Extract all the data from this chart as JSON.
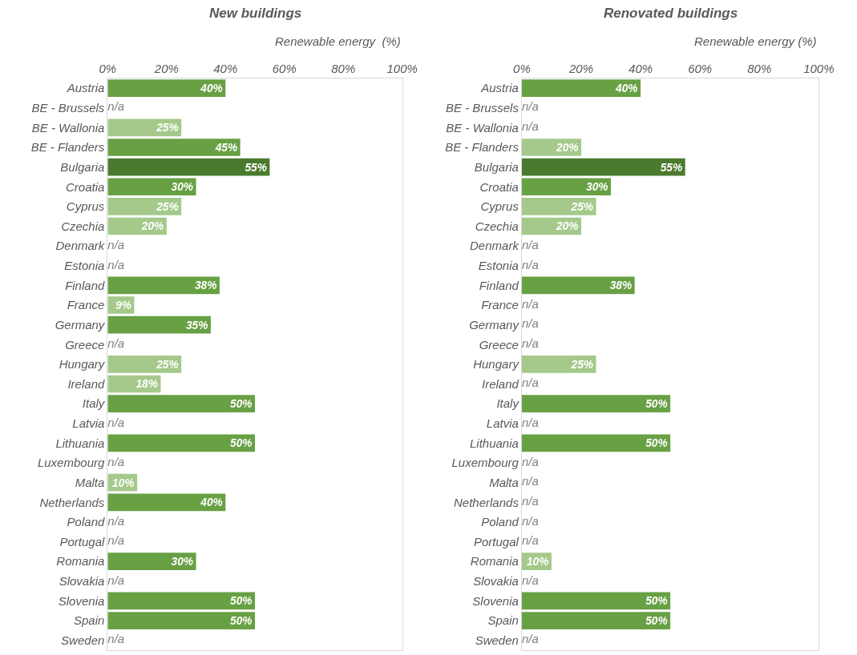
{
  "chart_data": [
    {
      "type": "bar",
      "orientation": "horizontal",
      "title": "New buildings",
      "xlabel": "Renewable energy  (%)",
      "categories": [
        "Austria",
        "BE - Brussels",
        "BE - Wallonia",
        "BE - Flanders",
        "Bulgaria",
        "Croatia",
        "Cyprus",
        "Czechia",
        "Denmark",
        "Estonia",
        "Finland",
        "France",
        "Germany",
        "Greece",
        "Hungary",
        "Ireland",
        "Italy",
        "Latvia",
        "Lithuania",
        "Luxembourg",
        "Malta",
        "Netherlands",
        "Poland",
        "Portugal",
        "Romania",
        "Slovakia",
        "Slovenia",
        "Spain",
        "Sweden"
      ],
      "values": [
        40,
        null,
        25,
        45,
        55,
        30,
        25,
        20,
        null,
        null,
        38,
        9,
        35,
        null,
        25,
        18,
        50,
        null,
        50,
        null,
        10,
        40,
        null,
        null,
        30,
        null,
        50,
        50,
        null
      ],
      "value_labels": [
        "40%",
        "n/a",
        "25%",
        "45%",
        "55%",
        "30%",
        "25%",
        "20%",
        "n/a",
        "n/a",
        "38%",
        "9%",
        "35%",
        "n/a",
        "25%",
        "18%",
        "50%",
        "n/a",
        "50%",
        "n/a",
        "10%",
        "40%",
        "n/a",
        "n/a",
        "30%",
        "n/a",
        "50%",
        "50%",
        "n/a"
      ],
      "colors": [
        "#68a044",
        null,
        "#a4c98a",
        "#68a044",
        "#4a7a2e",
        "#68a044",
        "#a4c98a",
        "#a4c98a",
        null,
        null,
        "#68a044",
        "#a4c98a",
        "#68a044",
        null,
        "#a4c98a",
        "#a4c98a",
        "#68a044",
        null,
        "#68a044",
        null,
        "#a4c98a",
        "#68a044",
        null,
        null,
        "#68a044",
        null,
        "#68a044",
        "#68a044",
        null
      ],
      "xlim": [
        0,
        100
      ],
      "xticks": [
        {
          "value": 0,
          "label": "0%"
        },
        {
          "value": 20,
          "label": "20%"
        },
        {
          "value": 40,
          "label": "40%"
        },
        {
          "value": 60,
          "label": "60%"
        },
        {
          "value": 80,
          "label": "80%"
        },
        {
          "value": 100,
          "label": "100%"
        }
      ]
    },
    {
      "type": "bar",
      "orientation": "horizontal",
      "title": "Renovated buildings",
      "xlabel": "Renewable energy (%)",
      "categories": [
        "Austria",
        "BE - Brussels",
        "BE - Wallonia",
        "BE - Flanders",
        "Bulgaria",
        "Croatia",
        "Cyprus",
        "Czechia",
        "Denmark",
        "Estonia",
        "Finland",
        "France",
        "Germany",
        "Greece",
        "Hungary",
        "Ireland",
        "Italy",
        "Latvia",
        "Lithuania",
        "Luxembourg",
        "Malta",
        "Netherlands",
        "Poland",
        "Portugal",
        "Romania",
        "Slovakia",
        "Slovenia",
        "Spain",
        "Sweden"
      ],
      "values": [
        40,
        null,
        null,
        20,
        55,
        30,
        25,
        20,
        null,
        null,
        38,
        null,
        null,
        null,
        25,
        null,
        50,
        null,
        50,
        null,
        null,
        null,
        null,
        null,
        10,
        null,
        50,
        50,
        null
      ],
      "value_labels": [
        "40%",
        "n/a",
        "n/a",
        "20%",
        "55%",
        "30%",
        "25%",
        "20%",
        "n/a",
        "n/a",
        "38%",
        "n/a",
        "n/a",
        "n/a",
        "25%",
        "n/a",
        "50%",
        "n/a",
        "50%",
        "n/a",
        "n/a",
        "n/a",
        "n/a",
        "n/a",
        "10%",
        "n/a",
        "50%",
        "50%",
        "n/a"
      ],
      "colors": [
        "#68a044",
        null,
        null,
        "#a4c98a",
        "#4a7a2e",
        "#68a044",
        "#a4c98a",
        "#a4c98a",
        null,
        null,
        "#68a044",
        null,
        null,
        null,
        "#a4c98a",
        null,
        "#68a044",
        null,
        "#68a044",
        null,
        null,
        null,
        null,
        null,
        "#a4c98a",
        null,
        "#68a044",
        "#68a044",
        null
      ],
      "xlim": [
        0,
        100
      ],
      "xticks": [
        {
          "value": 0,
          "label": "0%"
        },
        {
          "value": 20,
          "label": "20%"
        },
        {
          "value": 40,
          "label": "40%"
        },
        {
          "value": 60,
          "label": "60%"
        },
        {
          "value": 80,
          "label": "80%"
        },
        {
          "value": 100,
          "label": "100%"
        }
      ]
    }
  ]
}
